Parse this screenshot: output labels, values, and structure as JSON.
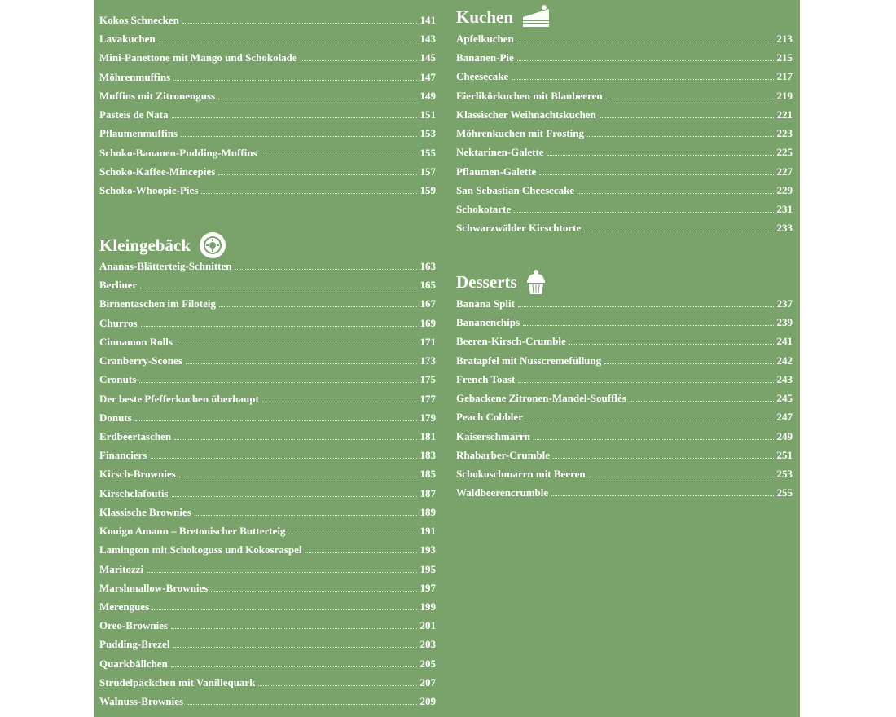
{
  "columns": [
    {
      "sections": [
        {
          "items": [
            {
              "name": "Kokos Schnecken",
              "page": "141"
            },
            {
              "name": "Lavakuchen",
              "page": "143"
            },
            {
              "name": "Mini-Panettone mit Mango und Schokolade",
              "page": "145"
            },
            {
              "name": "Möhrenmuffins",
              "page": "147"
            },
            {
              "name": "Muffins mit Zitronenguss",
              "page": "149"
            },
            {
              "name": "Pasteis de Nata",
              "page": "151"
            },
            {
              "name": "Pflaumenmuffins",
              "page": "153"
            },
            {
              "name": "Schoko-Bananen-Pudding-Muffins",
              "page": "155"
            },
            {
              "name": "Schoko-Kaffee-Mincepies",
              "page": "157"
            },
            {
              "name": "Schoko-Whoopie-Pies",
              "page": "159"
            }
          ]
        },
        {
          "heading": "Kleingebäck",
          "items": [
            {
              "name": "Ananas-Blätterteig-Schnitten",
              "page": "163"
            },
            {
              "name": "Berliner",
              "page": "165"
            },
            {
              "name": "Birnentaschen im Filoteig",
              "page": "167"
            },
            {
              "name": "Churros",
              "page": "169"
            },
            {
              "name": "Cinnamon Rolls",
              "page": "171"
            },
            {
              "name": "Cranberry-Scones",
              "page": "173"
            },
            {
              "name": "Cronuts",
              "page": "175"
            },
            {
              "name": "Der beste Pfefferkuchen überhaupt",
              "page": "177"
            },
            {
              "name": "Donuts",
              "page": "179"
            },
            {
              "name": "Erdbeertaschen",
              "page": "181"
            },
            {
              "name": "Financiers",
              "page": "183"
            },
            {
              "name": "Kirsch-Brownies",
              "page": "185"
            },
            {
              "name": "Kirschclafoutis",
              "page": "187"
            },
            {
              "name": "Klassische Brownies",
              "page": "189"
            },
            {
              "name": "Kouign Amann – Bretonischer Butterteig",
              "page": "191"
            },
            {
              "name": "Lamington mit Schokoguss und Kokosraspel",
              "page": "193"
            },
            {
              "name": "Maritozzi",
              "page": "195"
            },
            {
              "name": "Marshmallow-Brownies",
              "page": "197"
            },
            {
              "name": "Merengues",
              "page": "199"
            },
            {
              "name": "Oreo-Brownies",
              "page": "201"
            },
            {
              "name": "Pudding-Brezel",
              "page": "203"
            },
            {
              "name": "Quarkbällchen",
              "page": "205"
            },
            {
              "name": "Strudelpäckchen mit Vanillequark",
              "page": "207"
            },
            {
              "name": "Walnuss-Brownies",
              "page": "209"
            }
          ]
        }
      ]
    },
    {
      "sections": [
        {
          "heading": "Kuchen",
          "items": [
            {
              "name": "Apfelkuchen",
              "page": "213"
            },
            {
              "name": "Bananen-Pie",
              "page": "215"
            },
            {
              "name": "Cheesecake",
              "page": "217"
            },
            {
              "name": "Eierlikörkuchen mit Blaubeeren",
              "page": "219"
            },
            {
              "name": "Klassischer Weihnachtskuchen",
              "page": "221"
            },
            {
              "name": "Möhrenkuchen mit Frosting",
              "page": "223"
            },
            {
              "name": "Nektarinen-Galette",
              "page": "225"
            },
            {
              "name": "Pflaumen-Galette",
              "page": "227"
            },
            {
              "name": "San Sebastian Cheesecake",
              "page": "229"
            },
            {
              "name": "Schokotarte",
              "page": "231"
            },
            {
              "name": "Schwarzwälder Kirschtorte",
              "page": "233"
            }
          ]
        },
        {
          "heading": "Desserts",
          "items": [
            {
              "name": "Banana Split",
              "page": "237"
            },
            {
              "name": "Bananenchips",
              "page": "239"
            },
            {
              "name": "Beeren-Kirsch-Crumble",
              "page": "241"
            },
            {
              "name": "Bratapfel mit Nusscremefüllung",
              "page": "242"
            },
            {
              "name": "French Toast",
              "page": "243"
            },
            {
              "name": "Gebackene Zitronen-Mandel-Soufflés",
              "page": "245"
            },
            {
              "name": "Peach Cobbler",
              "page": "247"
            },
            {
              "name": "Kaiserschmarrn",
              "page": "249"
            },
            {
              "name": "Rhabarber-Crumble",
              "page": "251"
            },
            {
              "name": "Schokoschmarrn mit Beeren",
              "page": "253"
            },
            {
              "name": "Waldbeerencrumble",
              "page": "255"
            }
          ]
        }
      ]
    }
  ]
}
